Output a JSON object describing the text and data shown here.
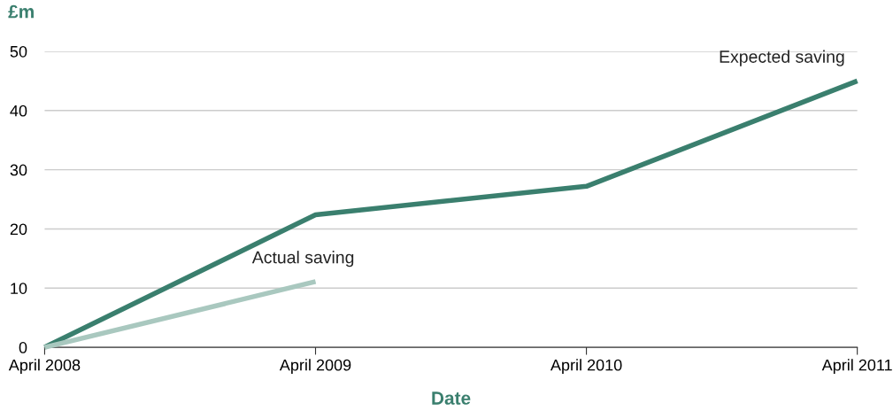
{
  "chart_data": {
    "type": "line",
    "xlabel": "Date",
    "ylabel": "£m",
    "categories": [
      "April 2008",
      "April 2009",
      "April 2010",
      "April 2011"
    ],
    "series": [
      {
        "name": "Expected saving",
        "color": "#3a7f6e",
        "values": [
          0,
          22.4,
          27.2,
          45
        ]
      },
      {
        "name": "Actual saving",
        "color": "#a9c8bf",
        "values": [
          0,
          11.1,
          null,
          null
        ]
      }
    ],
    "ylim": [
      0,
      50
    ],
    "yticks": [
      0,
      10,
      20,
      30,
      40,
      50
    ],
    "grid": "y",
    "legend": false,
    "marker": "none",
    "line_style": "solid"
  }
}
